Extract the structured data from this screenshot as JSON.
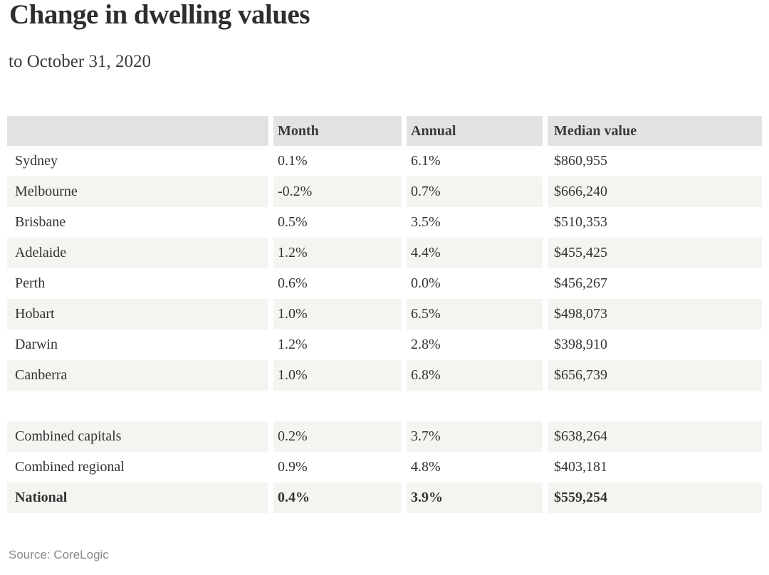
{
  "title": "Change in dwelling values",
  "subtitle": "to October 31, 2020",
  "source": "Source: CoreLogic",
  "colors": {
    "header_bg": "#e2e2e2",
    "row_shade_bg": "#f5f4f1",
    "text": "#333333",
    "title_text": "#2e2e2e",
    "source_text": "#8a8a8a"
  },
  "chart_data": {
    "type": "table",
    "title": "Change in dwelling values",
    "subtitle": "to October 31, 2020",
    "source": "Source: CoreLogic",
    "columns": [
      "",
      "Month",
      "Annual",
      "Median value"
    ],
    "rows": [
      [
        "Sydney",
        "0.1%",
        "6.1%",
        "$860,955"
      ],
      [
        "Melbourne",
        "-0.2%",
        "0.7%",
        "$666,240"
      ],
      [
        "Brisbane",
        "0.5%",
        "3.5%",
        "$510,353"
      ],
      [
        "Adelaide",
        "1.2%",
        "4.4%",
        "$455,425"
      ],
      [
        "Perth",
        "0.6%",
        "0.0%",
        "$456,267"
      ],
      [
        "Hobart",
        "1.0%",
        "6.5%",
        "$498,073"
      ],
      [
        "Darwin",
        "1.2%",
        "2.8%",
        "$398,910"
      ],
      [
        "Canberra",
        "1.0%",
        "6.8%",
        "$656,739"
      ],
      [
        "Combined capitals",
        "0.2%",
        "3.7%",
        "$638,264"
      ],
      [
        "Combined regional",
        "0.9%",
        "4.8%",
        "$403,181"
      ],
      [
        "National",
        "0.4%",
        "3.9%",
        "$559,254"
      ]
    ]
  }
}
